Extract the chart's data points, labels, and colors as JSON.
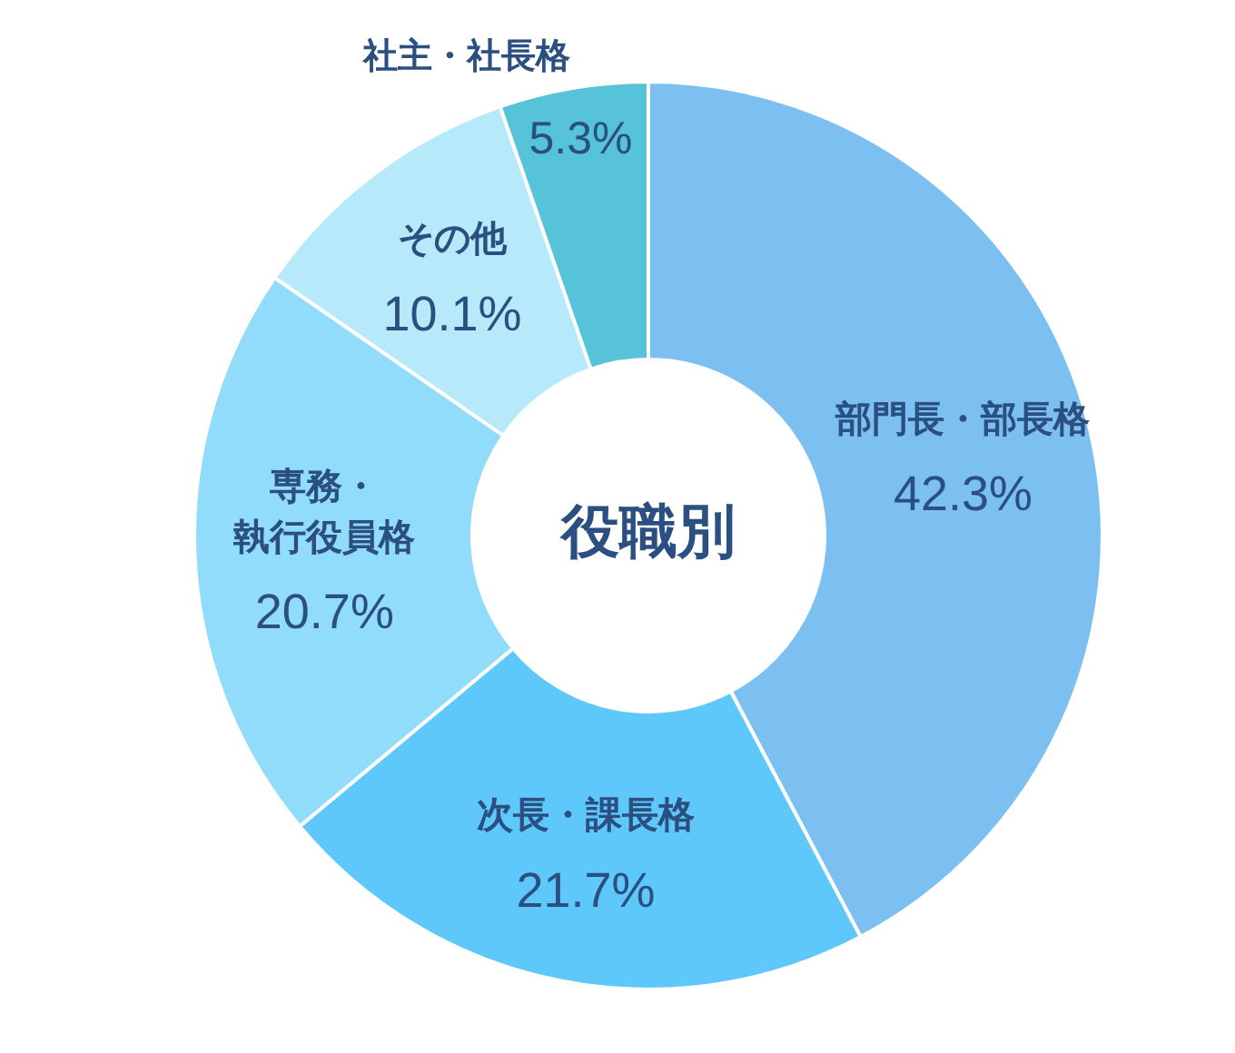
{
  "chart_data": {
    "type": "donut",
    "title": "役職別",
    "categories": [
      "部門長・部長格",
      "次長・課長格",
      "専務・執行役員格",
      "その他",
      "社主・社長格"
    ],
    "values": [
      42.3,
      21.7,
      20.7,
      10.1,
      5.3
    ],
    "value_labels": [
      "42.3%",
      "21.7%",
      "20.7%",
      "10.1%",
      "5.3%"
    ],
    "colors": [
      "#7bc0f0",
      "#5fc8fb",
      "#90dcfa",
      "#b6e9f9",
      "#56c3d8"
    ]
  }
}
